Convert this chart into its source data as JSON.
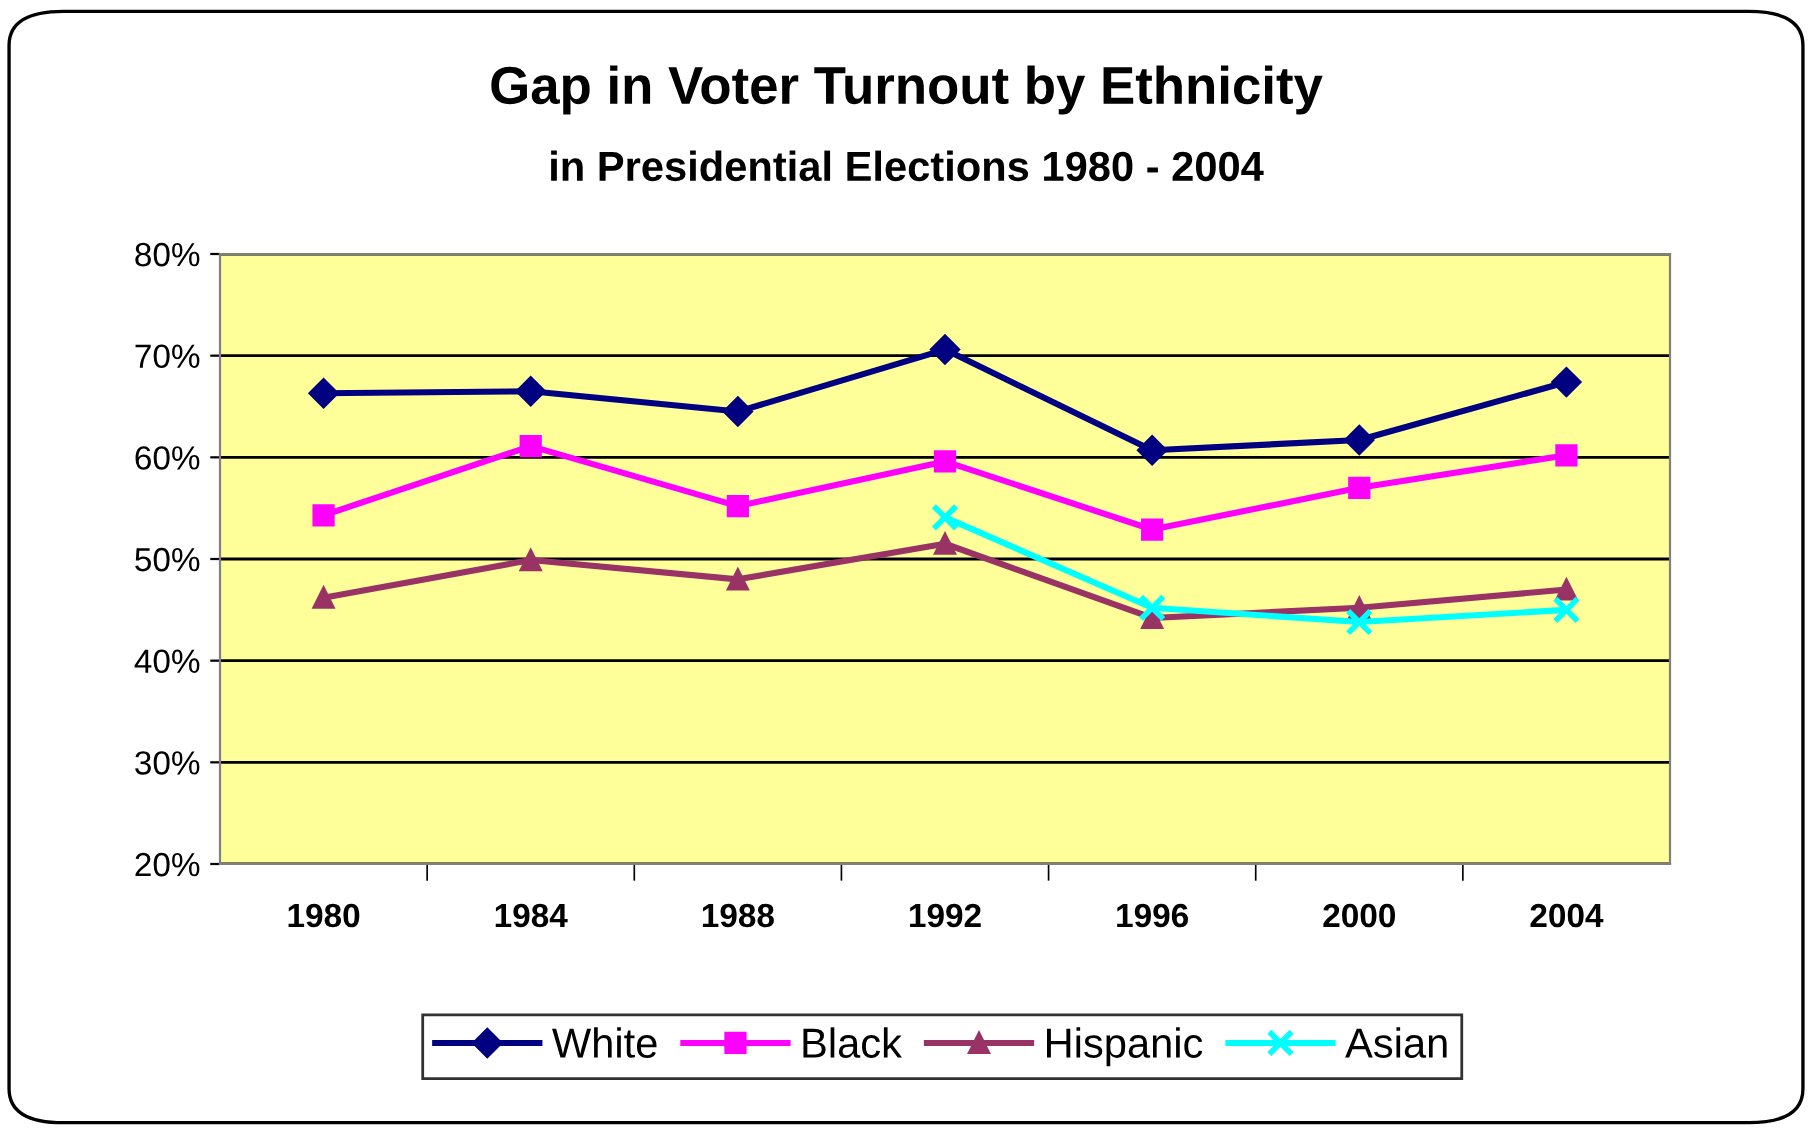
{
  "chart_data": {
    "type": "line",
    "title": "Gap in Voter Turnout by Ethnicity",
    "subtitle": "in Presidential Elections 1980 - 2004",
    "categories": [
      "1980",
      "1984",
      "1988",
      "1992",
      "1996",
      "2000",
      "2004"
    ],
    "series": [
      {
        "name": "White",
        "color": "#000080",
        "marker": "diamond",
        "values": [
          66.3,
          66.5,
          64.5,
          70.6,
          60.7,
          61.7,
          67.4
        ]
      },
      {
        "name": "Black",
        "color": "#ff00ff",
        "marker": "square",
        "values": [
          54.3,
          61.1,
          55.2,
          59.6,
          52.9,
          57.0,
          60.2
        ]
      },
      {
        "name": "Hispanic",
        "color": "#993366",
        "marker": "triangle",
        "values": [
          46.2,
          49.9,
          48.0,
          51.5,
          44.2,
          45.2,
          47.0
        ]
      },
      {
        "name": "Asian",
        "color": "#00ffff",
        "marker": "cross",
        "values": [
          null,
          null,
          null,
          54.1,
          45.2,
          43.8,
          45.0
        ]
      }
    ],
    "ylim": [
      20,
      80
    ],
    "yticks": [
      {
        "value": 20,
        "label": "20%"
      },
      {
        "value": 30,
        "label": "30%"
      },
      {
        "value": 40,
        "label": "40%"
      },
      {
        "value": 50,
        "label": "50%"
      },
      {
        "value": 60,
        "label": "60%"
      },
      {
        "value": 70,
        "label": "70%"
      },
      {
        "value": 80,
        "label": "80%"
      }
    ],
    "grid": "y",
    "legend": "bottom",
    "line_style": "solid"
  }
}
